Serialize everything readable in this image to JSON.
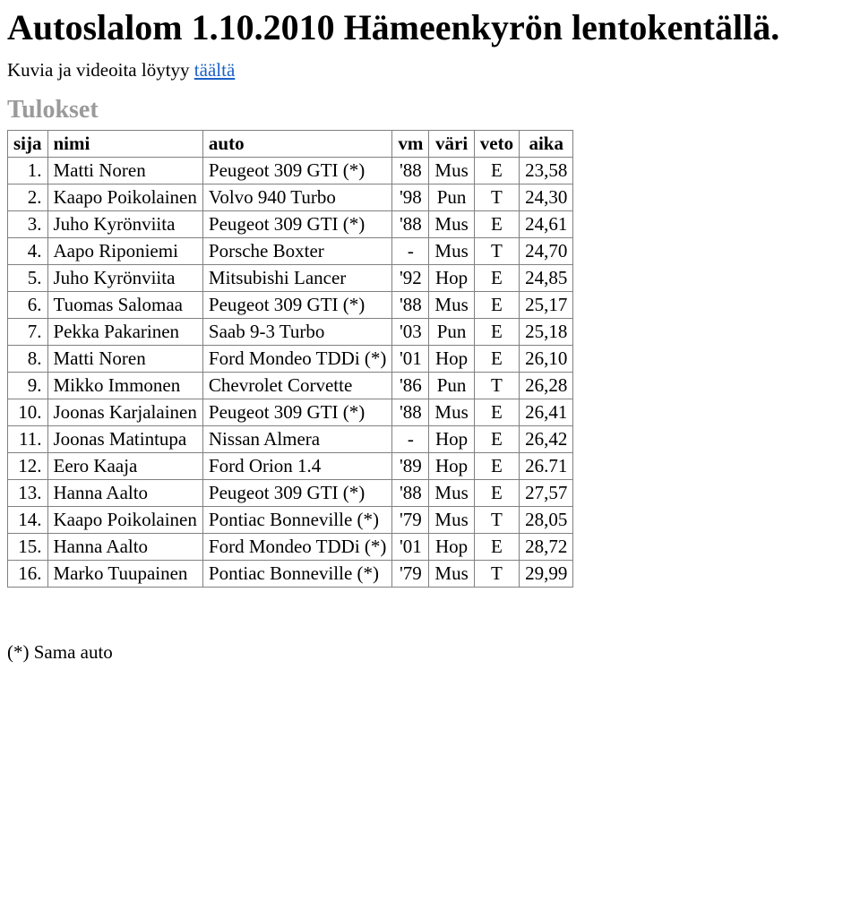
{
  "title": "Autoslalom 1.10.2010 Hämeenkyrön lentokentällä.",
  "intro_prefix": "Kuvia ja videoita löytyy ",
  "intro_link_text": "täältä",
  "section_heading": "Tulokset",
  "table": {
    "columns": [
      {
        "key": "sija",
        "label": "sija",
        "align": "right"
      },
      {
        "key": "nimi",
        "label": "nimi",
        "align": "left"
      },
      {
        "key": "auto",
        "label": "auto",
        "align": "left"
      },
      {
        "key": "vm",
        "label": "vm",
        "align": "center"
      },
      {
        "key": "vari",
        "label": "väri",
        "align": "center"
      },
      {
        "key": "veto",
        "label": "veto",
        "align": "center"
      },
      {
        "key": "aika",
        "label": "aika",
        "align": "center"
      }
    ],
    "rows": [
      [
        "1.",
        "Matti Noren",
        "Peugeot 309 GTI (*)",
        "'88",
        "Mus",
        "E",
        "23,58"
      ],
      [
        "2.",
        "Kaapo Poikolainen",
        "Volvo 940 Turbo",
        "'98",
        "Pun",
        "T",
        "24,30"
      ],
      [
        "3.",
        "Juho Kyrönviita",
        "Peugeot 309 GTI (*)",
        "'88",
        "Mus",
        "E",
        "24,61"
      ],
      [
        "4.",
        "Aapo Riponiemi",
        "Porsche Boxter",
        "-",
        "Mus",
        "T",
        "24,70"
      ],
      [
        "5.",
        "Juho Kyrönviita",
        "Mitsubishi Lancer",
        "'92",
        "Hop",
        "E",
        "24,85"
      ],
      [
        "6.",
        "Tuomas Salomaa",
        "Peugeot 309 GTI (*)",
        "'88",
        "Mus",
        "E",
        "25,17"
      ],
      [
        "7.",
        "Pekka Pakarinen",
        "Saab 9-3 Turbo",
        "'03",
        "Pun",
        "E",
        "25,18"
      ],
      [
        "8.",
        "Matti Noren",
        "Ford Mondeo TDDi (*)",
        "'01",
        "Hop",
        "E",
        "26,10"
      ],
      [
        "9.",
        "Mikko Immonen",
        "Chevrolet Corvette",
        "'86",
        "Pun",
        "T",
        "26,28"
      ],
      [
        "10.",
        "Joonas Karjalainen",
        "Peugeot 309 GTI (*)",
        "'88",
        "Mus",
        "E",
        "26,41"
      ],
      [
        "11.",
        "Joonas Matintupa",
        "Nissan Almera",
        "-",
        "Hop",
        "E",
        "26,42"
      ],
      [
        "12.",
        "Eero Kaaja",
        "Ford Orion 1.4",
        "'89",
        "Hop",
        "E",
        "26.71"
      ],
      [
        "13.",
        "Hanna Aalto",
        "Peugeot 309 GTI (*)",
        "'88",
        "Mus",
        "E",
        "27,57"
      ],
      [
        "14.",
        "Kaapo Poikolainen",
        "Pontiac Bonneville (*)",
        "'79",
        "Mus",
        "T",
        "28,05"
      ],
      [
        "15.",
        "Hanna Aalto",
        "Ford Mondeo TDDi (*)",
        "'01",
        "Hop",
        "E",
        "28,72"
      ],
      [
        "16.",
        "Marko Tuupainen",
        "Pontiac Bonneville (*)",
        "'79",
        "Mus",
        "T",
        "29,99"
      ]
    ]
  },
  "footnote": "(*) Sama auto"
}
